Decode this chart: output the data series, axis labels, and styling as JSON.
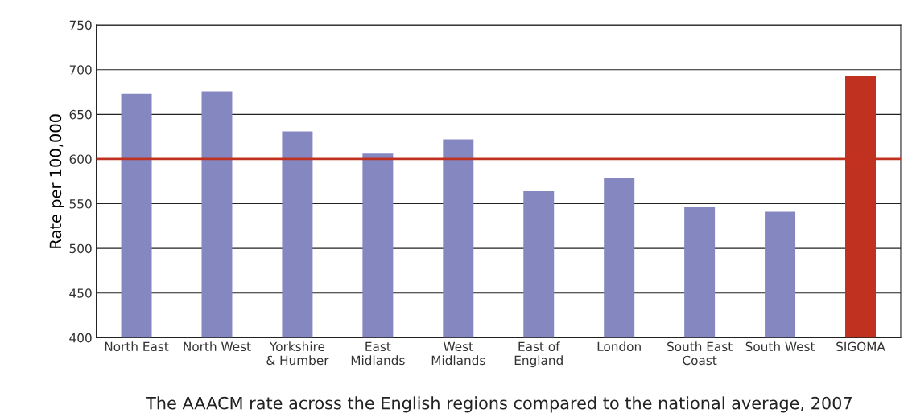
{
  "chart_data": {
    "type": "bar",
    "title": "The AAACM rate across the English regions compared to the national average, 2007",
    "ylabel": "Rate per 100,000",
    "categories": [
      "North East",
      "North West",
      "Yorkshire\n& Humber",
      "East\nMidlands",
      "West\nMidlands",
      "East of\nEngland",
      "London",
      "South East\nCoast",
      "South West",
      "SIGOMA"
    ],
    "values": [
      673,
      676,
      631,
      606,
      622,
      564,
      579,
      546,
      541,
      693
    ],
    "colors": [
      "#8588c0",
      "#8588c0",
      "#8588c0",
      "#8588c0",
      "#8588c0",
      "#8588c0",
      "#8588c0",
      "#8588c0",
      "#8588c0",
      "#c1311f"
    ],
    "ylim": [
      400,
      750
    ],
    "yticks": [
      400,
      450,
      500,
      550,
      600,
      650,
      700,
      750
    ],
    "grid": "y",
    "ref_lines": [
      {
        "axis": "y",
        "value": 600,
        "color": "#c1311f"
      }
    ]
  }
}
